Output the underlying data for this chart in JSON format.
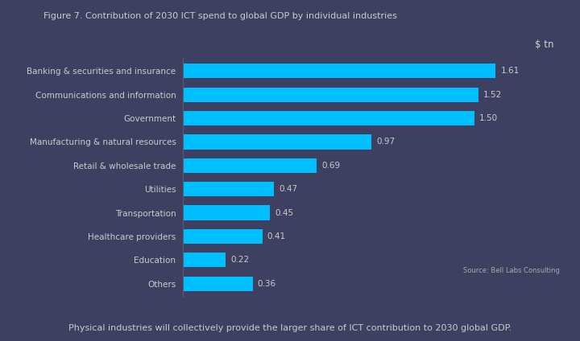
{
  "title": "Figure 7. Contribution of 2030 ICT spend to global GDP by individual industries",
  "unit_label": "$ tn",
  "source": "Source: Bell Labs Consulting",
  "footnote": "Physical industries will collectively provide the larger share of ICT contribution to 2030 global GDP.",
  "categories": [
    "Banking & securities and insurance",
    "Communications and information",
    "Government",
    "Manufacturing & natural resources",
    "Retail & wholesale trade",
    "Utilities",
    "Transportation",
    "Healthcare providers",
    "Education",
    "Others"
  ],
  "values": [
    1.61,
    1.52,
    1.5,
    0.97,
    0.69,
    0.47,
    0.45,
    0.41,
    0.22,
    0.36
  ],
  "bar_color": "#00BFFF",
  "background_color": "#3d4060",
  "text_color": "#d0d0d0",
  "title_color": "#cccccc",
  "label_color": "#cccccc",
  "value_color": "#cccccc",
  "source_color": "#aaaaaa",
  "footnote_color": "#cccccc",
  "xlim": [
    0,
    1.85
  ]
}
